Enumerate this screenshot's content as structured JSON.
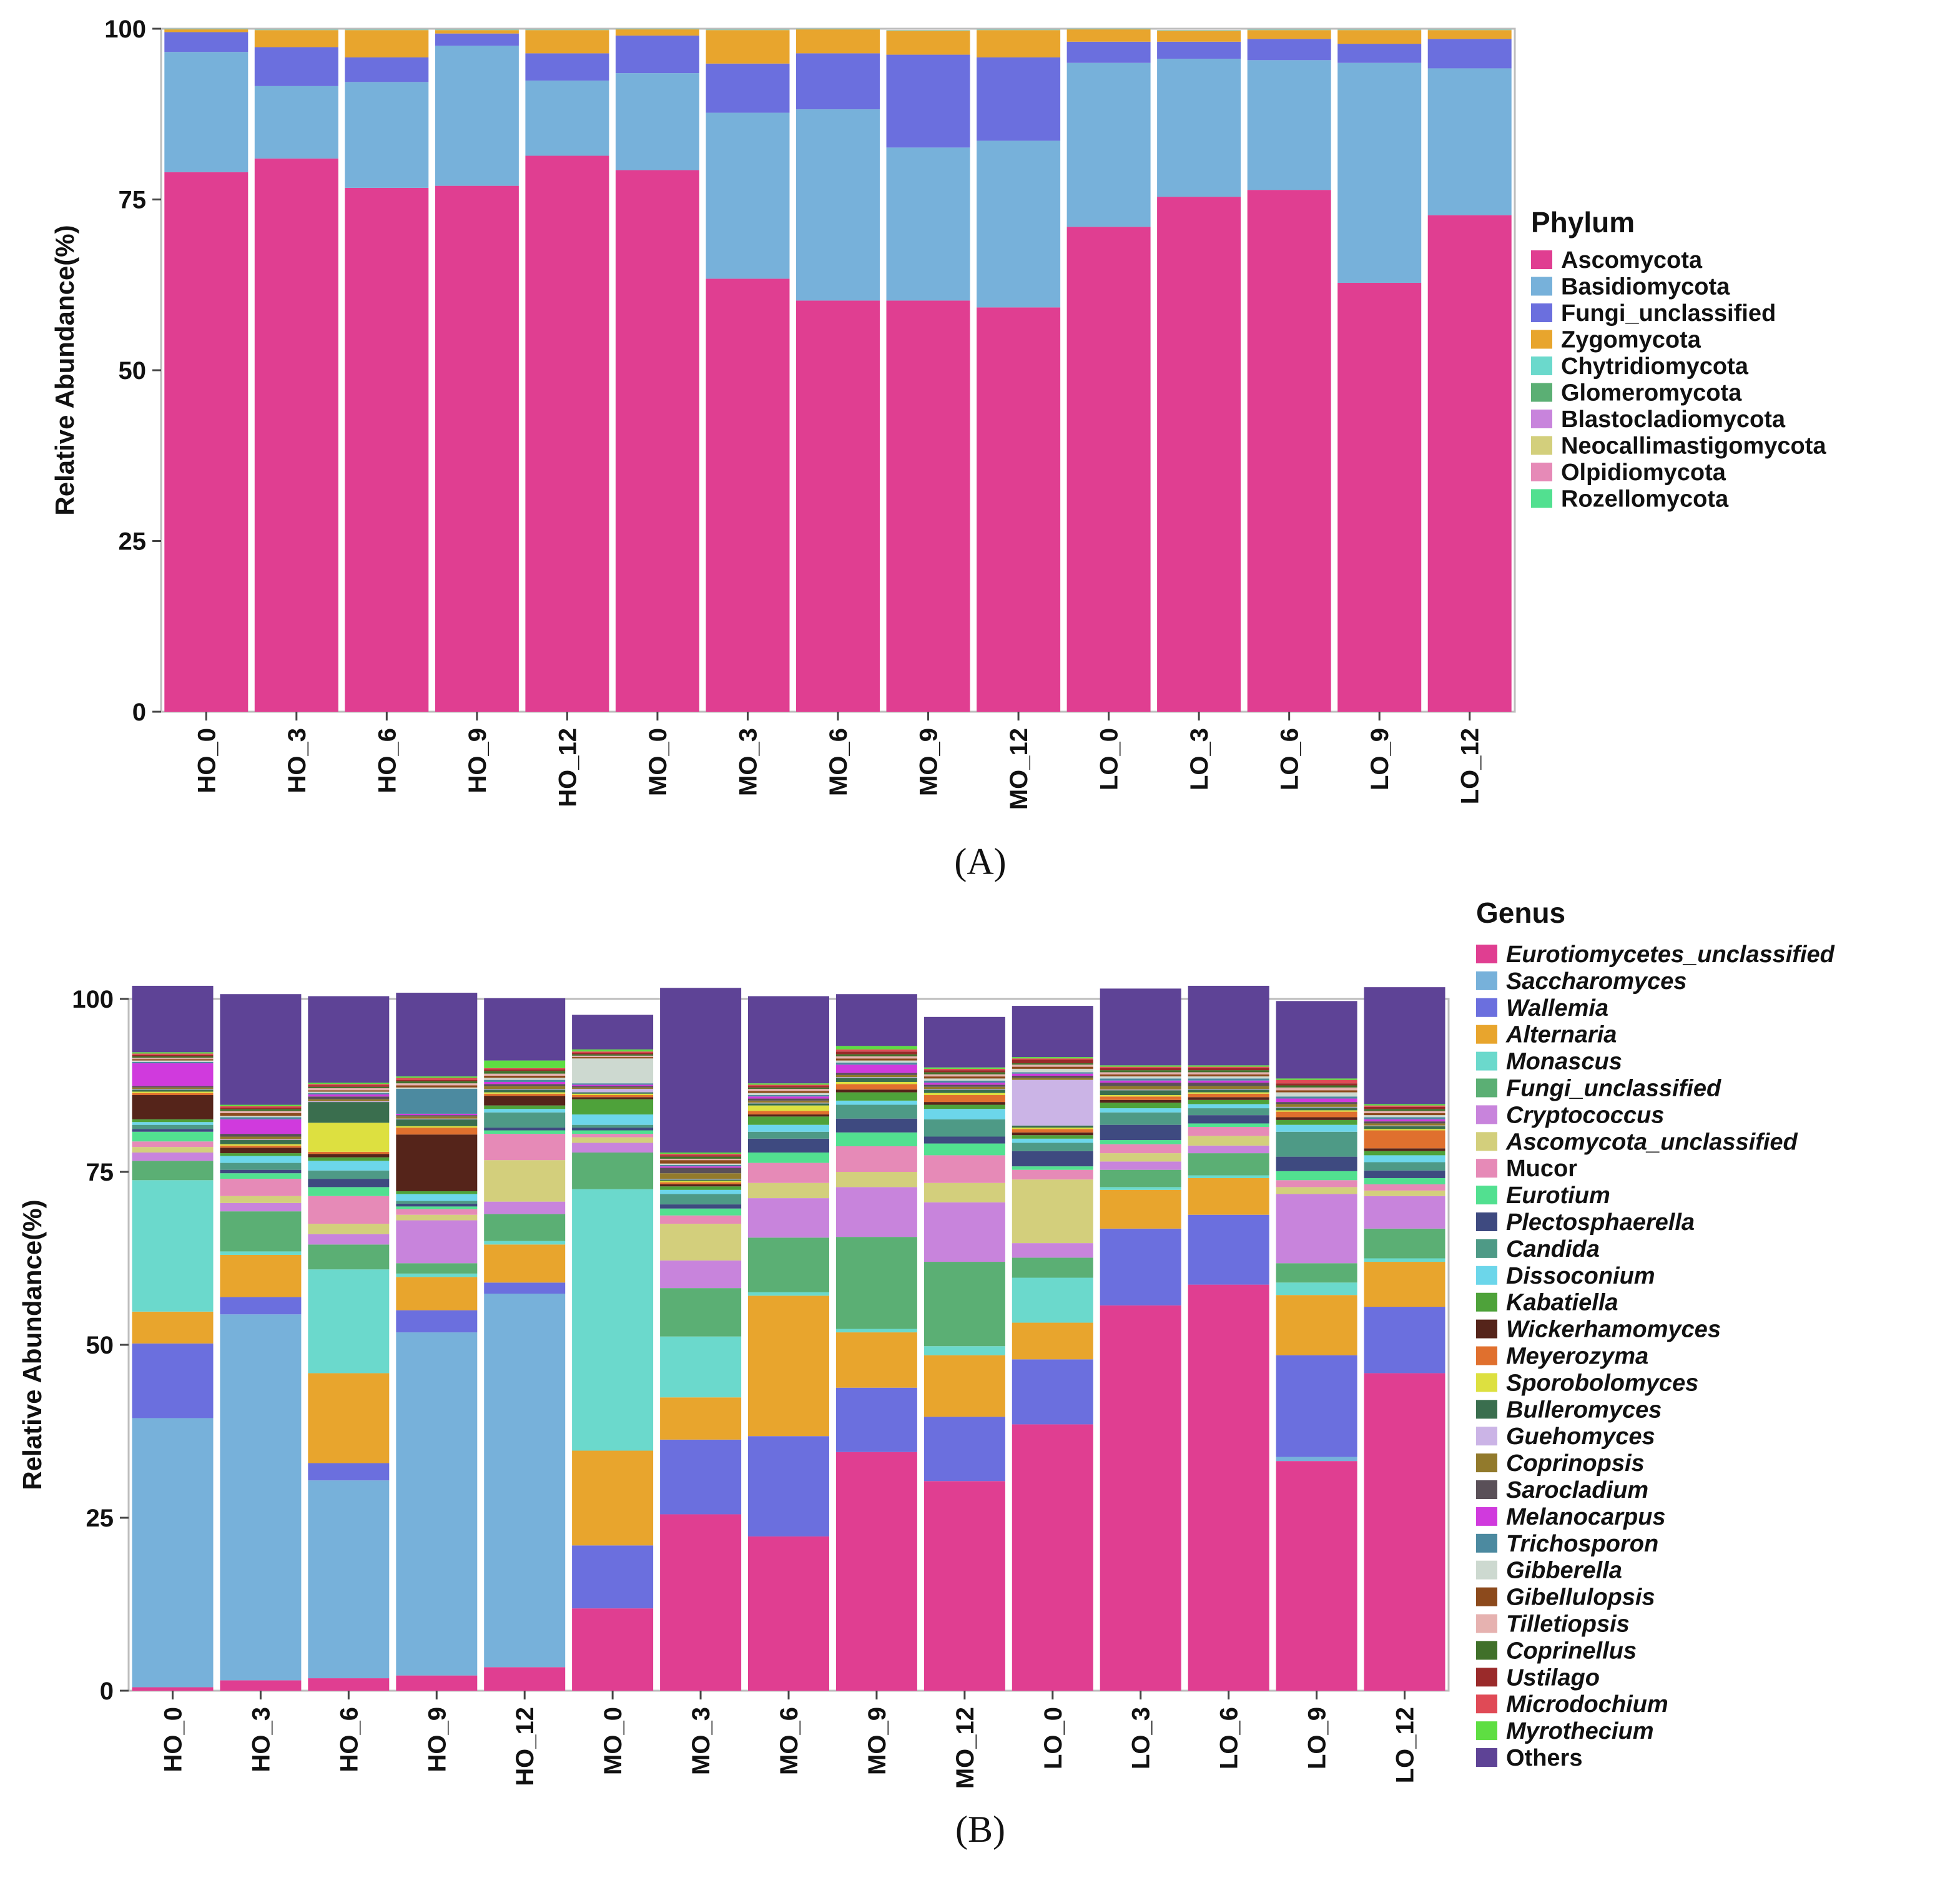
{
  "chart_data": [
    {
      "panel": "A",
      "panel_label": "(A)",
      "type": "bar",
      "stacked": true,
      "ylabel": "Relative Abundance(%)",
      "ylim": [
        0,
        100
      ],
      "yticks": [
        0,
        25,
        50,
        75,
        100
      ],
      "categories": [
        "HO_0",
        "HO_3",
        "HO_6",
        "HO_9",
        "HO_12",
        "MO_0",
        "MO_3",
        "MO_6",
        "MO_9",
        "MO_12",
        "LO_0",
        "LO_3",
        "LO_6",
        "LO_9",
        "LO_12"
      ],
      "legend_title": "Phylum",
      "legend": [
        {
          "name": "Ascomycota",
          "color": "#E03E91"
        },
        {
          "name": "Basidiomycota",
          "color": "#77B1DA"
        },
        {
          "name": "Fungi_unclassified",
          "color": "#6B6FDE"
        },
        {
          "name": "Zygomycota",
          "color": "#E8A52D"
        },
        {
          "name": "Chytridiomycota",
          "color": "#6BD9CC"
        },
        {
          "name": "Glomeromycota",
          "color": "#5BAF74"
        },
        {
          "name": "Blastocladiomycota",
          "color": "#C884DC"
        },
        {
          "name": "Neocallimastigomycota",
          "color": "#D3CF7C"
        },
        {
          "name": "Olpidiomycota",
          "color": "#E68AB7"
        },
        {
          "name": "Rozellomycota",
          "color": "#52E090"
        }
      ],
      "series": [
        {
          "name": "Ascomycota",
          "values": [
            79,
            81,
            76.7,
            77,
            81.4,
            79.3,
            63.4,
            60.2,
            60.2,
            59.2,
            71,
            75.4,
            76.4,
            62.8,
            72.7
          ]
        },
        {
          "name": "Basidiomycota",
          "values": [
            17.6,
            10.6,
            15.5,
            20.5,
            11,
            14.2,
            24.3,
            28,
            22.4,
            24.4,
            24,
            20.2,
            19,
            32.2,
            21.5
          ]
        },
        {
          "name": "Fungi_unclassified",
          "values": [
            2.9,
            5.7,
            3.6,
            1.8,
            4,
            5.5,
            7.2,
            8.2,
            13.6,
            12.2,
            3.1,
            2.5,
            3.1,
            2.8,
            4.3
          ]
        },
        {
          "name": "Zygomycota",
          "values": [
            0.4,
            2.5,
            4.0,
            0.5,
            3.4,
            0.9,
            4.9,
            3.5,
            3.5,
            4.0,
            1.8,
            1.6,
            1.3,
            2.0,
            1.3
          ]
        },
        {
          "name": "Chytridiomycota",
          "values": [
            0.05,
            0.05,
            0.05,
            0.05,
            0.05,
            0.05,
            0.05,
            0.05,
            0.05,
            0.05,
            0.05,
            0.05,
            0.05,
            0.05,
            0.05
          ]
        },
        {
          "name": "Glomeromycota",
          "values": [
            0.02,
            0.02,
            0.02,
            0.02,
            0.02,
            0.02,
            0.02,
            0.02,
            0.02,
            0.02,
            0.02,
            0.02,
            0.02,
            0.02,
            0.02
          ]
        },
        {
          "name": "Blastocladiomycota",
          "values": [
            0.01,
            0.01,
            0.01,
            0.01,
            0.01,
            0.01,
            0.01,
            0.01,
            0.01,
            0.01,
            0.01,
            0.01,
            0.01,
            0.01,
            0.01
          ]
        },
        {
          "name": "Neocallimastigomycota",
          "values": [
            0.01,
            0.01,
            0.01,
            0.01,
            0.01,
            0.01,
            0.01,
            0.01,
            0.01,
            0.01,
            0.01,
            0.01,
            0.01,
            0.01,
            0.01
          ]
        },
        {
          "name": "Olpidiomycota",
          "values": [
            0.01,
            0.01,
            0.01,
            0.01,
            0.01,
            0.01,
            0.01,
            0.01,
            0.01,
            0.01,
            0.01,
            0.01,
            0.01,
            0.01,
            0.01
          ]
        },
        {
          "name": "Rozellomycota",
          "values": [
            0.01,
            0.01,
            0.01,
            0.01,
            0.01,
            0.01,
            0.01,
            0.01,
            0.01,
            0.01,
            0.01,
            0.01,
            0.01,
            0.01,
            0.01
          ]
        }
      ]
    },
    {
      "panel": "B",
      "panel_label": "(B)",
      "type": "bar",
      "stacked": true,
      "ylabel": "Relative Abundance(%)",
      "ylim": [
        0,
        100
      ],
      "yticks": [
        0,
        25,
        50,
        75,
        100
      ],
      "categories": [
        "HO_0",
        "HO_3",
        "HO_6",
        "HO_9",
        "HO_12",
        "MO_0",
        "MO_3",
        "MO_6",
        "MO_9",
        "MO_12",
        "LO_0",
        "LO_3",
        "LO_6",
        "LO_9",
        "LO_12"
      ],
      "legend_title": "Genus",
      "legend": [
        {
          "name": "Eurotiomycetes_unclassified",
          "color": "#E03E91",
          "italic": true
        },
        {
          "name": "Saccharomyces",
          "color": "#77B1DA",
          "italic": true
        },
        {
          "name": "Wallemia",
          "color": "#6B6FDE",
          "italic": true
        },
        {
          "name": "Alternaria",
          "color": "#E8A52D",
          "italic": true
        },
        {
          "name": "Monascus",
          "color": "#6BD9CC",
          "italic": true
        },
        {
          "name": "Fungi_unclassified",
          "color": "#5BAF74",
          "italic": true
        },
        {
          "name": "Cryptococcus",
          "color": "#C884DC",
          "italic": true
        },
        {
          "name": "Ascomycota_unclassified",
          "color": "#D3CF7C",
          "italic": true
        },
        {
          "name": "Mucor",
          "color": "#E68AB7",
          "italic": false
        },
        {
          "name": "Eurotium",
          "color": "#52E090",
          "italic": true
        },
        {
          "name": "Plectosphaerella",
          "color": "#3E4A80",
          "italic": true
        },
        {
          "name": "Candida",
          "color": "#4E9A86",
          "italic": true
        },
        {
          "name": "Dissoconium",
          "color": "#6CD6EA",
          "italic": true
        },
        {
          "name": "Kabatiella",
          "color": "#4EA23A",
          "italic": true
        },
        {
          "name": "Wickerhamomyces",
          "color": "#55241A",
          "italic": true
        },
        {
          "name": "Meyerozyma",
          "color": "#E0702E",
          "italic": true
        },
        {
          "name": "Sporobolomyces",
          "color": "#DDE040",
          "italic": true
        },
        {
          "name": "Bulleromyces",
          "color": "#3A6E4E",
          "italic": true
        },
        {
          "name": "Guehomyces",
          "color": "#CBB4E6",
          "italic": true
        },
        {
          "name": "Coprinopsis",
          "color": "#927A2C",
          "italic": true
        },
        {
          "name": "Sarocladium",
          "color": "#5A5058",
          "italic": true
        },
        {
          "name": "Melanocarpus",
          "color": "#D03ADD",
          "italic": true
        },
        {
          "name": "Trichosporon",
          "color": "#4C8AA0",
          "italic": true
        },
        {
          "name": "Gibberella",
          "color": "#CDD9D0",
          "italic": true
        },
        {
          "name": "Gibellulopsis",
          "color": "#8C4A1C",
          "italic": true
        },
        {
          "name": "Tilletiopsis",
          "color": "#E6B2B0",
          "italic": true
        },
        {
          "name": "Coprinellus",
          "color": "#40702A",
          "italic": true
        },
        {
          "name": "Ustilago",
          "color": "#9A2A2A",
          "italic": true
        },
        {
          "name": "Microdochium",
          "color": "#E04A56",
          "italic": true
        },
        {
          "name": "Myrothecium",
          "color": "#5EDE42",
          "italic": true
        },
        {
          "name": "Others",
          "color": "#5E4396",
          "italic": false
        }
      ],
      "series": [
        {
          "name": "Eurotiomycetes_unclassified",
          "values": [
            0.5,
            1.5,
            1.8,
            2.2,
            3.4,
            11.9,
            25.5,
            22.3,
            34.5,
            30.3,
            38.5,
            55.7,
            58.7,
            33.2,
            45.9
          ]
        },
        {
          "name": "Saccharomyces",
          "values": [
            38.9,
            52.9,
            28.6,
            49.6,
            54.0,
            0,
            0,
            0,
            0,
            0,
            0,
            0,
            0,
            0.6,
            0
          ]
        },
        {
          "name": "Wallemia",
          "values": [
            10.8,
            2.5,
            2.5,
            3.2,
            1.6,
            9.1,
            10.8,
            14.5,
            9.3,
            9.3,
            9.4,
            11.1,
            10.1,
            14.7,
            9.6
          ]
        },
        {
          "name": "Alternaria",
          "values": [
            4.6,
            6.1,
            13.0,
            4.8,
            5.5,
            13.7,
            6.1,
            20.3,
            8.0,
            8.9,
            5.3,
            5.6,
            5.3,
            8.7,
            6.5
          ]
        },
        {
          "name": "Monascus",
          "values": [
            19.0,
            0.5,
            15.0,
            0.5,
            0.5,
            37.8,
            8.8,
            0.5,
            0.5,
            1.3,
            6.5,
            0.4,
            0.4,
            1.8,
            0.5
          ]
        },
        {
          "name": "Fungi_unclassified",
          "values": [
            2.8,
            5.8,
            3.6,
            1.5,
            3.9,
            5.3,
            7.0,
            7.9,
            13.3,
            12.2,
            2.9,
            2.5,
            3.2,
            2.8,
            4.3
          ]
        },
        {
          "name": "Cryptococcus",
          "values": [
            1.2,
            1.2,
            1.5,
            6.2,
            1.8,
            1.4,
            4.0,
            5.7,
            7.2,
            8.6,
            2.1,
            1.2,
            1.1,
            10.0,
            4.7
          ]
        },
        {
          "name": "Ascomycota_unclassified",
          "values": [
            0.8,
            1.0,
            1.5,
            0.8,
            6.0,
            0.8,
            5.3,
            2.2,
            2.2,
            2.8,
            9.2,
            1.2,
            1.4,
            1.0,
            0.8
          ]
        },
        {
          "name": "Mucor",
          "values": [
            0.8,
            2.5,
            4.0,
            0.8,
            3.8,
            0.5,
            1.2,
            2.9,
            3.7,
            4.0,
            1.4,
            1.3,
            1.3,
            1.0,
            0.9
          ]
        },
        {
          "name": "Eurotium",
          "values": [
            1.4,
            0.8,
            1.3,
            0.4,
            0.5,
            0.5,
            1.0,
            1.5,
            2.0,
            1.7,
            0.5,
            0.6,
            0.5,
            1.3,
            0.9
          ]
        },
        {
          "name": "Plectosphaerella",
          "values": [
            0.4,
            0.5,
            1.2,
            0.4,
            0.4,
            0.4,
            0.6,
            2.0,
            2.0,
            1.0,
            2.2,
            2.2,
            1.2,
            2.1,
            1.1
          ]
        },
        {
          "name": "Candida",
          "values": [
            0.6,
            1.0,
            1.2,
            0.4,
            2.2,
            0.4,
            1.5,
            1.0,
            2.0,
            2.5,
            1.2,
            1.8,
            1.0,
            3.6,
            1.2
          ]
        },
        {
          "name": "Dissoconium",
          "values": [
            0.4,
            1.0,
            1.4,
            1.0,
            0.5,
            1.5,
            0.6,
            1.0,
            0.6,
            1.5,
            0.6,
            0.6,
            0.6,
            1.0,
            1.0
          ]
        },
        {
          "name": "Kabatiella",
          "values": [
            0.4,
            0.4,
            0.5,
            0.4,
            0.5,
            2.2,
            0.5,
            1.2,
            1.2,
            0.6,
            0.5,
            0.8,
            0.6,
            0.7,
            0.6
          ]
        },
        {
          "name": "Wickerhamomyces",
          "values": [
            3.5,
            0.8,
            0.5,
            8.2,
            1.4,
            0.3,
            0.3,
            0.3,
            0.4,
            0.4,
            0.4,
            0.4,
            0.4,
            0.4,
            0.4
          ]
        },
        {
          "name": "Meyerozyma",
          "values": [
            0.3,
            0.3,
            0.3,
            1.0,
            0.3,
            0.3,
            0.3,
            0.5,
            0.8,
            1.0,
            0.5,
            0.5,
            0.5,
            0.8,
            2.6
          ]
        },
        {
          "name": "Sporobolomyces",
          "values": [
            0.2,
            0.2,
            4.2,
            0.2,
            0.2,
            0.2,
            0.2,
            0.8,
            0.3,
            0.3,
            0.2,
            0.2,
            0.2,
            0.2,
            0.2
          ]
        },
        {
          "name": "Bulleromyces",
          "values": [
            0.3,
            0.6,
            3.0,
            1.0,
            0.4,
            0.2,
            0.2,
            0.3,
            0.6,
            0.5,
            0.3,
            0.7,
            0.4,
            0.4,
            0.4
          ]
        },
        {
          "name": "Guehomyces",
          "values": [
            0.1,
            0.1,
            0.1,
            0.1,
            0.1,
            0.5,
            0.1,
            0.1,
            0.1,
            0.1,
            6.6,
            0.1,
            0.1,
            0.1,
            0.1
          ]
        },
        {
          "name": "Coprinopsis",
          "values": [
            0.2,
            0.4,
            0.3,
            0.3,
            0.4,
            0.2,
            0.8,
            0.3,
            0.3,
            0.3,
            0.3,
            0.5,
            0.4,
            0.4,
            0.3
          ]
        },
        {
          "name": "Sarocladium",
          "values": [
            0.2,
            0.4,
            0.4,
            0.2,
            0.3,
            0.2,
            0.8,
            0.3,
            0.3,
            0.3,
            0.3,
            0.5,
            0.5,
            0.3,
            0.3
          ]
        },
        {
          "name": "Melanocarpus",
          "values": [
            3.3,
            2.1,
            0.3,
            0.2,
            0.3,
            0.2,
            0.2,
            0.3,
            1.2,
            0.3,
            0.3,
            0.3,
            0.3,
            0.5,
            0.3
          ]
        },
        {
          "name": "Trichosporon",
          "values": [
            0.2,
            0.3,
            0.2,
            3.6,
            0.3,
            0.2,
            0.2,
            0.2,
            0.3,
            0.3,
            0.2,
            0.3,
            0.3,
            0.3,
            0.3
          ]
        },
        {
          "name": "Gibberella",
          "values": [
            0.2,
            0.2,
            0.2,
            0.2,
            0.3,
            3.6,
            0.2,
            0.3,
            0.3,
            0.3,
            0.5,
            0.3,
            0.3,
            0.6,
            0.3
          ]
        },
        {
          "name": "Gibellulopsis",
          "values": [
            0.2,
            0.4,
            0.2,
            0.3,
            0.3,
            0.2,
            0.5,
            0.3,
            0.3,
            0.3,
            0.3,
            0.3,
            0.3,
            0.3,
            0.3
          ]
        },
        {
          "name": "Tilletiopsis",
          "values": [
            0.2,
            0.3,
            0.3,
            0.3,
            0.3,
            0.2,
            0.2,
            0.3,
            0.3,
            0.3,
            0.3,
            0.3,
            0.3,
            0.4,
            0.3
          ]
        },
        {
          "name": "Coprinellus",
          "values": [
            0.2,
            0.3,
            0.2,
            0.3,
            0.4,
            0.2,
            0.3,
            0.2,
            0.3,
            0.3,
            0.2,
            0.3,
            0.3,
            0.3,
            0.3
          ]
        },
        {
          "name": "Ustilago",
          "values": [
            0.2,
            0.2,
            0.2,
            0.2,
            0.2,
            0.2,
            0.2,
            0.2,
            0.4,
            0.3,
            0.5,
            0.3,
            0.3,
            0.3,
            0.3
          ]
        },
        {
          "name": "Microdochium",
          "values": [
            0.2,
            0.2,
            0.2,
            0.3,
            0.2,
            0.2,
            0.2,
            0.2,
            0.3,
            0.2,
            0.2,
            0.2,
            0.2,
            0.5,
            0.2
          ]
        },
        {
          "name": "Myrothecium",
          "values": [
            0.2,
            0.2,
            0.2,
            0.2,
            1.1,
            0.3,
            0.2,
            0.2,
            0.5,
            0.2,
            0.2,
            0.2,
            0.2,
            0.2,
            0.2
          ]
        },
        {
          "name": "Others",
          "values": [
            9.6,
            16.0,
            12.5,
            12.1,
            9.0,
            5.0,
            23.8,
            12.6,
            7.5,
            7.3,
            7.4,
            11.1,
            11.5,
            11.2,
            16.9
          ]
        }
      ]
    }
  ]
}
